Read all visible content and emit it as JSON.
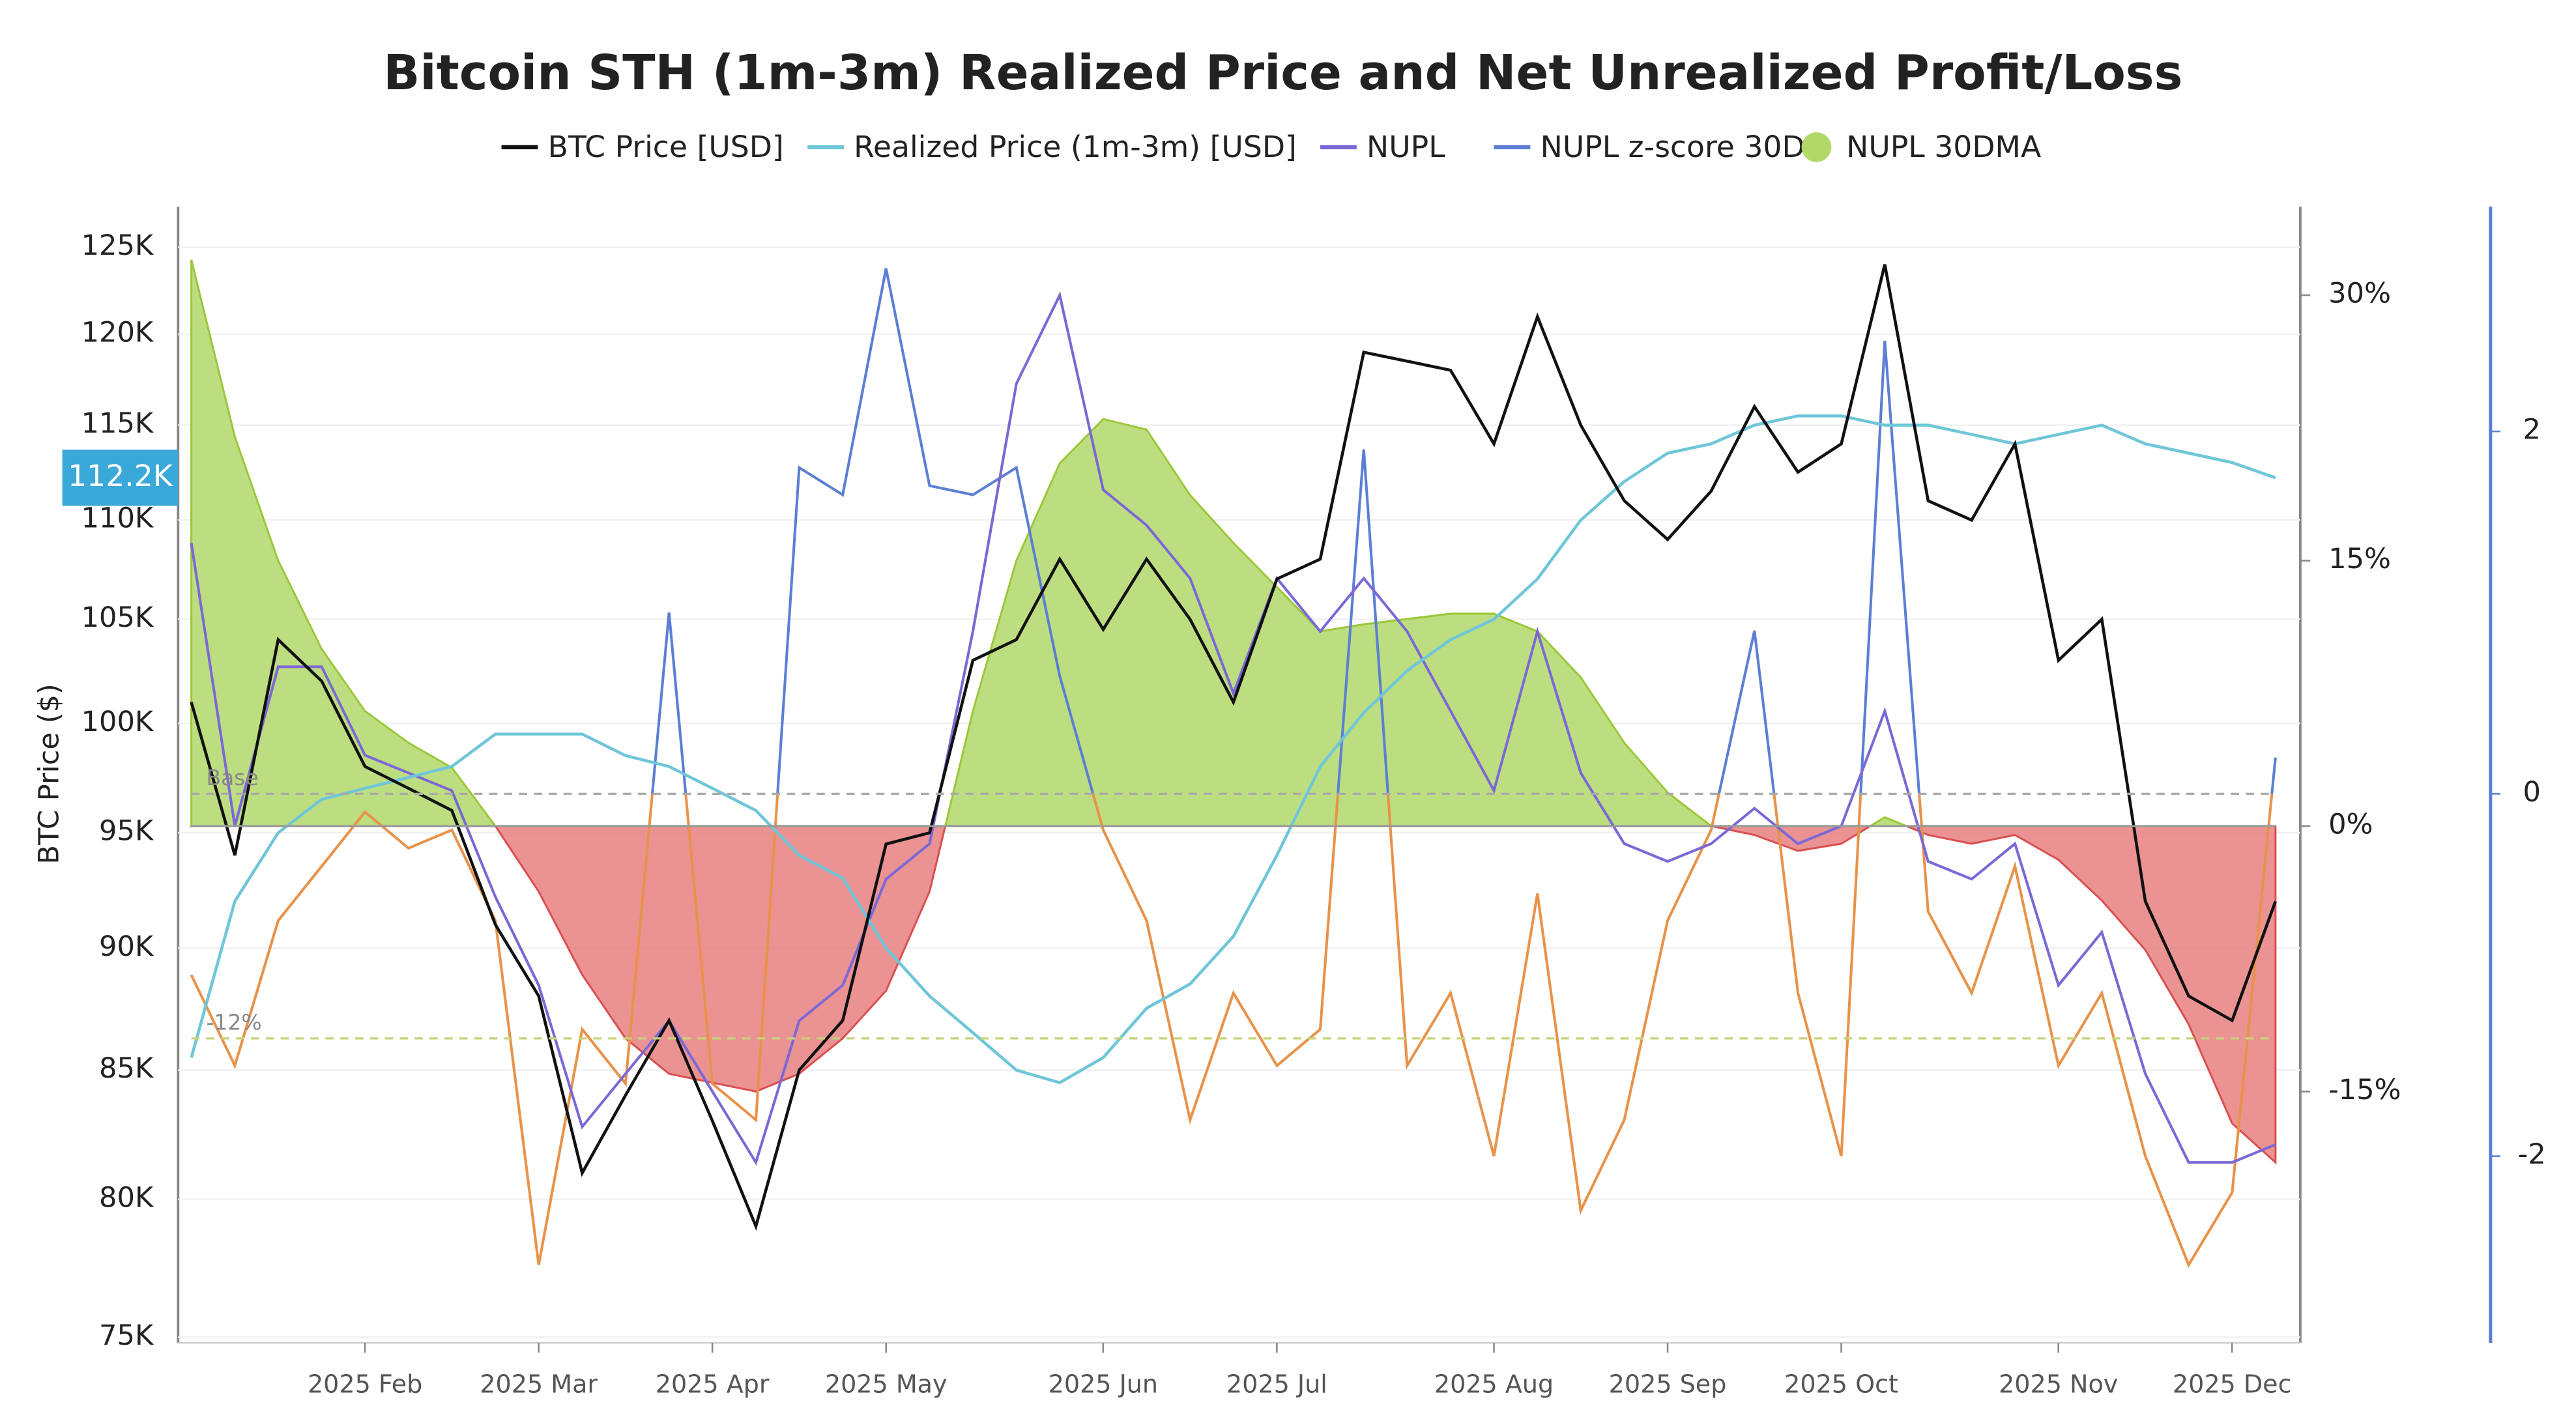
{
  "chart_data": {
    "type": "line",
    "title": "Bitcoin STH (1m-3m) Realized Price and Net Unrealized Profit/Loss",
    "ylabel": "BTC Price ($)",
    "categories": [
      null,
      null,
      null,
      null,
      "2025 Feb",
      null,
      null,
      null,
      "2025 Mar",
      null,
      null,
      null,
      "2025 Apr",
      null,
      null,
      null,
      "2025 May",
      null,
      null,
      null,
      null,
      "2025 Jun",
      null,
      null,
      null,
      "2025 Jul",
      null,
      null,
      null,
      null,
      "2025 Aug",
      null,
      null,
      null,
      "2025 Sep",
      null,
      null,
      null,
      "2025 Oct",
      null,
      null,
      null,
      null,
      "2025 Nov",
      null,
      null,
      null,
      "2025 Dec",
      null
    ],
    "log_y": true,
    "grid": true,
    "ylim": [
      74800,
      127400
    ],
    "yticks": [
      {
        "value": 75000,
        "label": "75K"
      },
      {
        "value": 80000,
        "label": "80K"
      },
      {
        "value": 85000,
        "label": "85K"
      },
      {
        "value": 90000,
        "label": "90K"
      },
      {
        "value": 95000,
        "label": "95K"
      },
      {
        "value": 100000,
        "label": "100K"
      },
      {
        "value": 105000,
        "label": "105K"
      },
      {
        "value": 110000,
        "label": "110K"
      },
      {
        "value": 115000,
        "label": "115K"
      },
      {
        "value": 120000,
        "label": "120K"
      },
      {
        "value": 125000,
        "label": "125K"
      }
    ],
    "y2lim": [
      -29.2,
      35
    ],
    "y2ticks": [
      {
        "value": -15,
        "label": "-15%"
      },
      {
        "value": 0,
        "label": "0%"
      },
      {
        "value": 15,
        "label": "15%"
      },
      {
        "value": 30,
        "label": "30%"
      }
    ],
    "y3lim": [
      -3.03,
      3.24
    ],
    "y3ticks": [
      -2,
      0,
      2
    ],
    "current_label": {
      "value": 112200,
      "label": "112.2K"
    },
    "reference_lines": [
      {
        "label": "Base",
        "axis": "y3",
        "value": 0,
        "color": "#aaaaaa"
      },
      {
        "label": "-12%",
        "axis": "y2",
        "value": -12,
        "color": "#c8d27a"
      }
    ],
    "series": [
      {
        "name": "BTC Price [USD]",
        "color": "#111111",
        "axis": "y",
        "kind": "line",
        "values": [
          101000,
          94000,
          104000,
          102000,
          98000,
          97000,
          96000,
          91000,
          88000,
          81000,
          84000,
          87000,
          83000,
          79000,
          85000,
          87000,
          94500,
          95000,
          103000,
          104000,
          108000,
          104500,
          108000,
          105000,
          101000,
          107000,
          108000,
          119000,
          118500,
          118000,
          114000,
          121000,
          115000,
          111000,
          109000,
          111500,
          116000,
          112500,
          114000,
          124000,
          111000,
          110000,
          114000,
          103000,
          105000,
          92000,
          88000,
          87000,
          92000
        ]
      },
      {
        "name": "Realized Price (1m-3m) [USD]",
        "color": "#6ec6d8",
        "axis": "y",
        "kind": "line",
        "values": [
          85500,
          92000,
          95000,
          96500,
          97000,
          97500,
          98000,
          99500,
          99500,
          99500,
          98500,
          98000,
          97000,
          96000,
          94000,
          93000,
          90000,
          88000,
          86500,
          85000,
          84500,
          85500,
          87500,
          88500,
          90500,
          94000,
          98000,
          100500,
          102500,
          104000,
          105000,
          107000,
          110000,
          112000,
          113500,
          114000,
          115000,
          115500,
          115500,
          115000,
          115000,
          114500,
          114000,
          114500,
          115000,
          114000,
          113500,
          113000,
          112200
        ]
      },
      {
        "name": "NUPL",
        "color": "#7b68d6",
        "axis": "y2",
        "kind": "line",
        "values": [
          16,
          0,
          9,
          9,
          4,
          3,
          2,
          -4,
          -9,
          -17,
          -14,
          -11,
          -15,
          -19,
          -11,
          -9,
          -3,
          -1,
          11,
          25,
          30,
          19,
          17,
          14,
          7.5,
          14,
          11,
          14,
          11,
          6.5,
          2,
          11,
          3,
          -1,
          -2,
          -1,
          1,
          -1,
          0,
          6.5,
          -2,
          -3,
          -1,
          -9,
          -6,
          -14,
          -19,
          -19,
          -18
        ]
      },
      {
        "name": "NUPL z-score 30D",
        "color": "#5b7fd4",
        "negative_color": "#e8924a",
        "axis": "y3",
        "kind": "line",
        "values": [
          -1.0,
          -1.5,
          -0.7,
          -0.4,
          -0.1,
          -0.3,
          -0.2,
          -0.7,
          -2.6,
          -1.3,
          -1.6,
          1.0,
          -1.6,
          -1.8,
          1.8,
          1.65,
          2.9,
          1.7,
          1.65,
          1.8,
          0.65,
          -0.2,
          -0.7,
          -1.8,
          -1.1,
          -1.5,
          -1.3,
          1.9,
          -1.5,
          -1.1,
          -2.0,
          -0.55,
          -2.3,
          -1.8,
          -0.7,
          -0.2,
          0.9,
          -1.1,
          -2.0,
          2.5,
          -0.65,
          -1.1,
          -0.4,
          -1.5,
          -1.1,
          -2.0,
          -2.6,
          -2.2,
          0.2
        ]
      },
      {
        "name": "NUPL 30DMA",
        "color": "#b2d86a",
        "negative_color": "#e88080",
        "axis": "y2",
        "kind": "area",
        "values": [
          32,
          22,
          15,
          10,
          6.5,
          4.7,
          3.3,
          0,
          -3.7,
          -8.4,
          -12,
          -14,
          -14.5,
          -15,
          -14,
          -12,
          -9.3,
          -3.7,
          6.5,
          15,
          20.5,
          23,
          22.4,
          18.7,
          16,
          13.5,
          11,
          11.4,
          11.7,
          12,
          12,
          11,
          8.4,
          4.7,
          1.9,
          0,
          -0.5,
          -1.4,
          -1,
          0.5,
          -0.5,
          -1,
          -0.5,
          -1.9,
          -4.2,
          -7,
          -11.2,
          -16.8,
          -19
        ]
      }
    ]
  }
}
